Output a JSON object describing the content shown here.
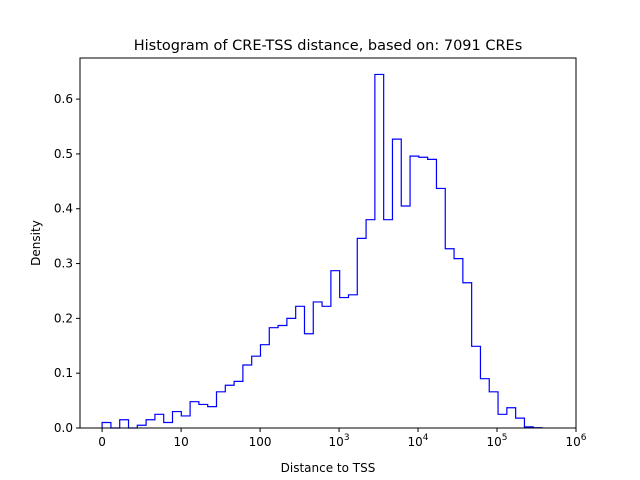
{
  "chart_data": {
    "type": "histogram",
    "title": "Histogram of CRE-TSS distance, based on: 7091 CREs",
    "xlabel": "Distance to TSS",
    "ylabel": "Density",
    "x_scale": "log10(distance + 1)",
    "xlim_log10": [
      -0.28,
      6
    ],
    "ylim": [
      0,
      0.675
    ],
    "x_ticks": [
      {
        "pos": 0,
        "label": "0",
        "sup": ""
      },
      {
        "pos": 1,
        "label": "10",
        "sup": ""
      },
      {
        "pos": 2,
        "label": "100",
        "sup": ""
      },
      {
        "pos": 3,
        "label": "10",
        "sup": "3"
      },
      {
        "pos": 4,
        "label": "10",
        "sup": "4"
      },
      {
        "pos": 5,
        "label": "10",
        "sup": "5"
      },
      {
        "pos": 6,
        "label": "10",
        "sup": "6"
      }
    ],
    "y_ticks": [
      {
        "value": 0,
        "label": "0.0"
      },
      {
        "value": 0.1,
        "label": "0.1"
      },
      {
        "value": 0.2,
        "label": "0.2"
      },
      {
        "value": 0.3,
        "label": "0.3"
      },
      {
        "value": 0.4,
        "label": "0.4"
      },
      {
        "value": 0.5,
        "label": "0.5"
      },
      {
        "value": 0.6,
        "label": "0.6"
      }
    ],
    "bin_start_log10": 0,
    "bin_width_log10": 0.1114,
    "densities": [
      0.01,
      0,
      0.015,
      0,
      0.005,
      0.015,
      0.025,
      0.01,
      0.03,
      0.022,
      0.048,
      0.043,
      0.039,
      0.066,
      0.078,
      0.085,
      0.115,
      0.131,
      0.152,
      0.183,
      0.187,
      0.2,
      0.222,
      0.172,
      0.23,
      0.222,
      0.287,
      0.238,
      0.243,
      0.346,
      0.38,
      0.645,
      0.38,
      0.527,
      0.405,
      0.496,
      0.494,
      0.49,
      0.437,
      0.327,
      0.309,
      0.265,
      0.149,
      0.09,
      0.066,
      0.025,
      0.037,
      0.018,
      0.002,
      0.0005
    ],
    "color": "#0000ff",
    "grid": false
  }
}
